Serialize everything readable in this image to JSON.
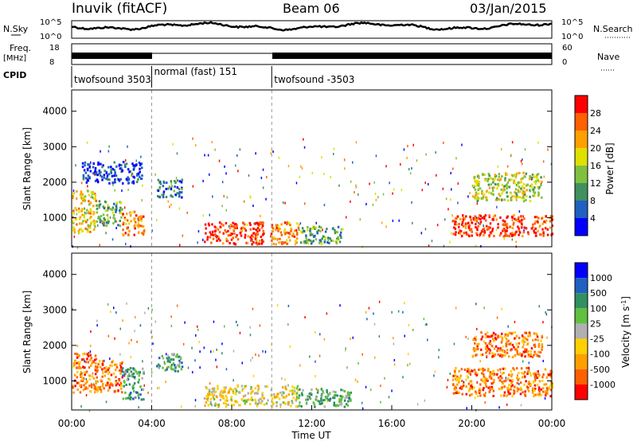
{
  "header": {
    "title": "Inuvik (fitACF)",
    "beam": "Beam 06",
    "date": "03/Jan/2015"
  },
  "status_panel": {
    "nsky_label": "N.Sky",
    "nsearch_label": "N.Search",
    "noise_ticks": [
      "10^5",
      "10^0"
    ],
    "freq_label": "Freq.",
    "freq_unit": "[MHz]",
    "freq_ticks": [
      "18",
      "8"
    ],
    "nave_label": "Nave",
    "nave_ticks": [
      "60",
      "0"
    ],
    "cpid_label": "CPID"
  },
  "cpid_segments": [
    {
      "label": "twofsound 3503",
      "start_hour": 0,
      "end_hour": 4
    },
    {
      "label": "normal (fast) 151",
      "start_hour": 4,
      "end_hour": 10
    },
    {
      "label": "twofsound -3503",
      "start_hour": 10,
      "end_hour": 24
    }
  ],
  "colors": {
    "power_scale": [
      "#0000ff",
      "#2060c0",
      "#409060",
      "#80c040",
      "#e0e000",
      "#ffa000",
      "#ff6000",
      "#ff0000"
    ],
    "velocity_scale": [
      "#ff0000",
      "#ff6000",
      "#ffa000",
      "#ffd000",
      "#b0b0b0",
      "#60c040",
      "#309060",
      "#2060c0",
      "#0000ff"
    ],
    "ground_scatter": "#b0b0b0"
  },
  "chart_data": [
    {
      "type": "heatmap",
      "name": "power-panel",
      "xlabel": "",
      "ylabel": "Slant Range [km]",
      "xlim": [
        0,
        24
      ],
      "ylim": [
        180,
        4600
      ],
      "y_ticks": [
        1000,
        2000,
        3000,
        4000
      ],
      "colorbar": {
        "label": "Power [dB]",
        "ticks": [
          4,
          8,
          12,
          16,
          20,
          24,
          28
        ],
        "range": [
          0,
          32
        ]
      },
      "regions": [
        {
          "t": [
            0,
            1.2
          ],
          "r": [
            600,
            1800
          ],
          "value": 22
        },
        {
          "t": [
            1.2,
            2.5
          ],
          "r": [
            800,
            1500
          ],
          "value": 14
        },
        {
          "t": [
            2.5,
            3.6
          ],
          "r": [
            500,
            1200
          ],
          "value": 24
        },
        {
          "t": [
            0.5,
            3.5
          ],
          "r": [
            2000,
            2600
          ],
          "value": 6
        },
        {
          "t": [
            4.2,
            5.5
          ],
          "r": [
            1600,
            2100
          ],
          "value": 10
        },
        {
          "t": [
            6.6,
            9.6
          ],
          "r": [
            280,
            900
          ],
          "value": 28
        },
        {
          "t": [
            9.9,
            11.3
          ],
          "r": [
            280,
            900
          ],
          "value": 27
        },
        {
          "t": [
            11.3,
            13.5
          ],
          "r": [
            300,
            800
          ],
          "value": 12
        },
        {
          "t": [
            19.0,
            24.0
          ],
          "r": [
            500,
            1100
          ],
          "value": 28
        },
        {
          "t": [
            20.0,
            23.5
          ],
          "r": [
            1500,
            2300
          ],
          "value": 18
        }
      ]
    },
    {
      "type": "heatmap",
      "name": "velocity-panel",
      "xlabel": "Time UT",
      "ylabel": "Slant Range [km]",
      "xlim": [
        0,
        24
      ],
      "ylim": [
        180,
        4600
      ],
      "x_ticks": [
        "00:00",
        "04:00",
        "08:00",
        "12:00",
        "16:00",
        "20:00",
        "00:00"
      ],
      "y_ticks": [
        1000,
        2000,
        3000,
        4000
      ],
      "colorbar": {
        "label": "Velocity [m s^-1]",
        "ticks": [
          1000,
          500,
          100,
          25,
          -25,
          -100,
          -500,
          -1000
        ]
      },
      "regions": [
        {
          "t": [
            0,
            1.2
          ],
          "r": [
            700,
            1800
          ],
          "value": -200
        },
        {
          "t": [
            1.2,
            2.5
          ],
          "r": [
            700,
            1600
          ],
          "value": -300
        },
        {
          "t": [
            2.5,
            3.6
          ],
          "r": [
            500,
            1400
          ],
          "value": 200
        },
        {
          "t": [
            4.2,
            5.5
          ],
          "r": [
            1300,
            1800
          ],
          "value": 300
        },
        {
          "t": [
            6.6,
            9.8
          ],
          "r": [
            300,
            900
          ],
          "value": 0
        },
        {
          "t": [
            9.9,
            11.3
          ],
          "r": [
            300,
            900
          ],
          "value": 0
        },
        {
          "t": [
            11.3,
            14.0
          ],
          "r": [
            300,
            800
          ],
          "value": 150
        },
        {
          "t": [
            19.0,
            24.0
          ],
          "r": [
            600,
            1400
          ],
          "value": -300
        },
        {
          "t": [
            20.0,
            23.5
          ],
          "r": [
            1700,
            2400
          ],
          "value": -150
        }
      ]
    }
  ]
}
